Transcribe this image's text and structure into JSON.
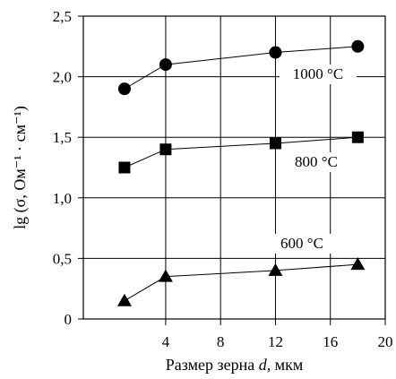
{
  "chart_data": {
    "type": "line",
    "xlabel_text": "Размер зерна ",
    "xlabel_var": "d",
    "xlabel_unit": ", мкм",
    "ylabel": "lg (σ, Ом⁻¹ · см⁻¹)",
    "xlim": [
      -2,
      20
    ],
    "ylim": [
      0,
      2.5
    ],
    "xticks": [
      4,
      8,
      12,
      16,
      20
    ],
    "xtick_labels": [
      "4",
      "8",
      "12",
      "16",
      "20"
    ],
    "yticks": [
      0,
      0.5,
      1.0,
      1.5,
      2.0,
      2.5
    ],
    "ytick_labels": [
      "0",
      "0,5",
      "1,0",
      "1,5",
      "2,0",
      "2,5"
    ],
    "grid": true,
    "series": [
      {
        "name": "1000 °C",
        "marker": "circle",
        "x": [
          1,
          4,
          12,
          18
        ],
        "y": [
          1.9,
          2.1,
          2.2,
          2.25
        ]
      },
      {
        "name": "800 °C",
        "marker": "square",
        "x": [
          1,
          4,
          12,
          18
        ],
        "y": [
          1.25,
          1.4,
          1.45,
          1.5
        ]
      },
      {
        "name": "600 °C",
        "marker": "triangle",
        "x": [
          1,
          4,
          12,
          18
        ],
        "y": [
          0.15,
          0.35,
          0.4,
          0.45
        ]
      }
    ]
  }
}
